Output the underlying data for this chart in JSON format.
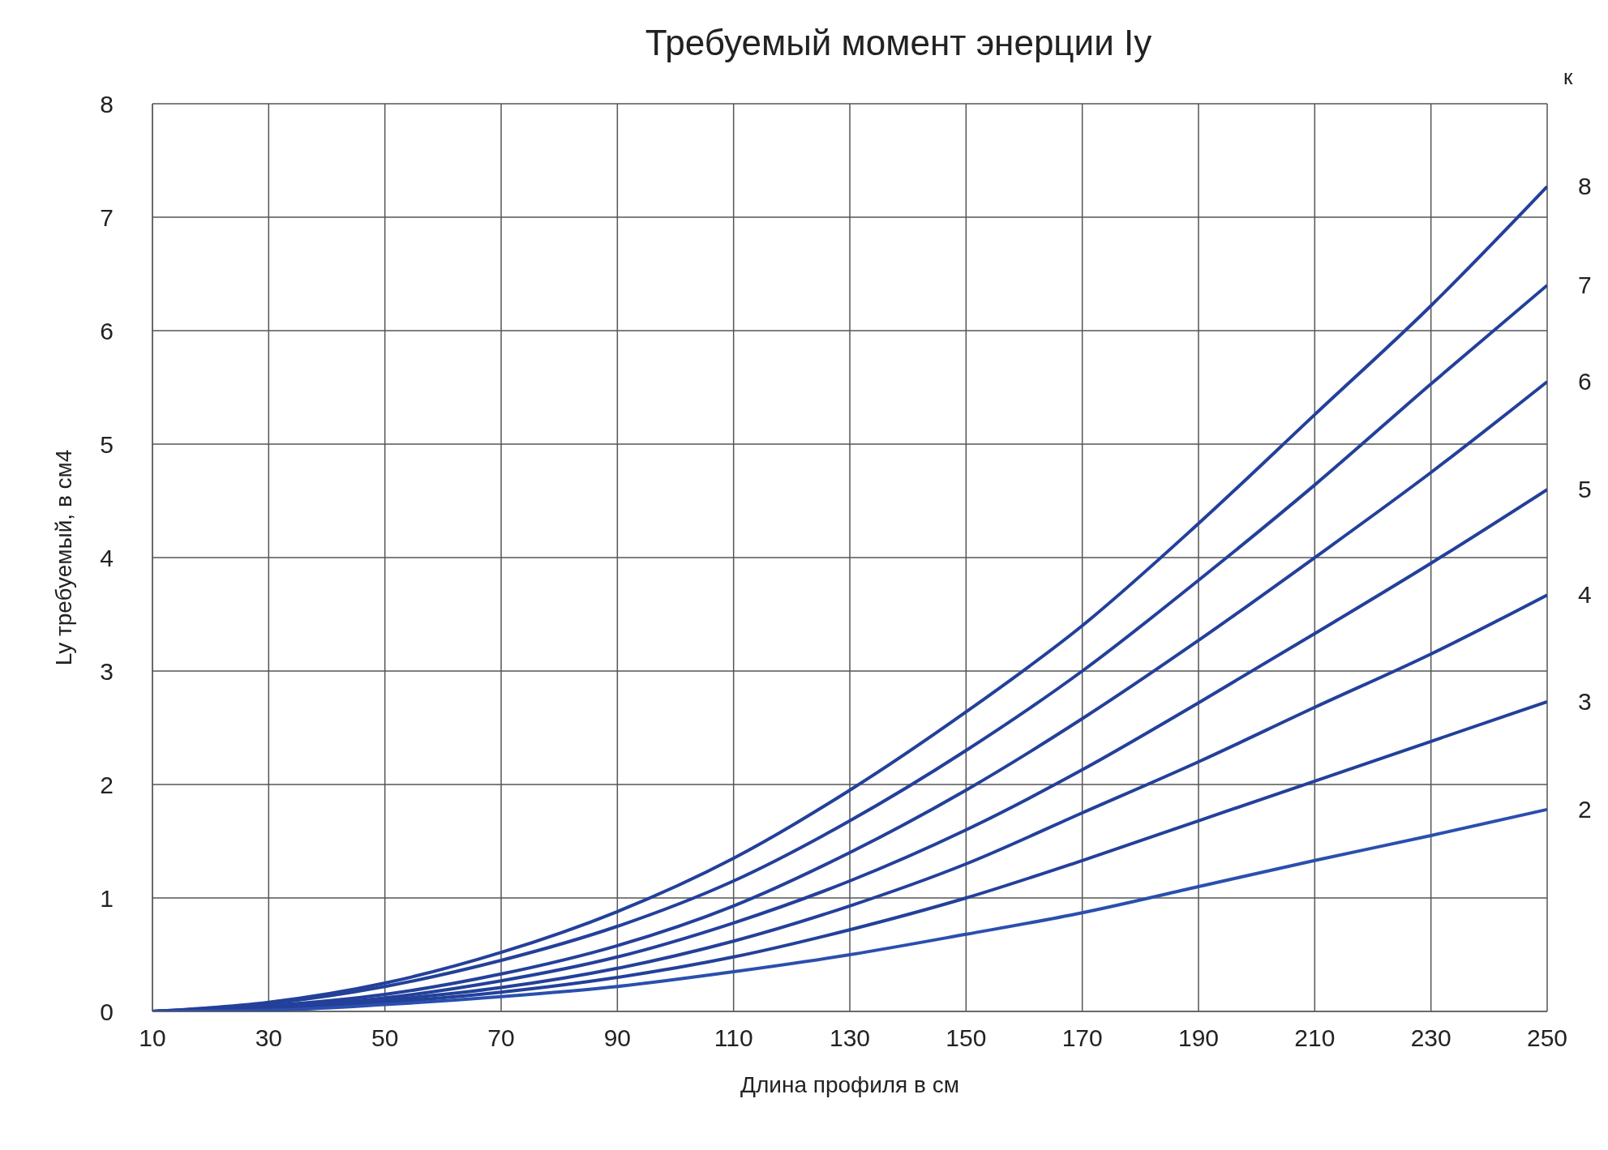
{
  "chart_data": {
    "type": "line",
    "title": "Требуемый момент энерции Iy",
    "xlabel": "Длина профиля в см",
    "ylabel": "Ly требуемый, в см4",
    "legend_title": "к",
    "x": [
      10,
      30,
      50,
      70,
      90,
      110,
      130,
      150,
      170,
      190,
      210,
      230,
      250
    ],
    "xlim": [
      10,
      250
    ],
    "xticks": [
      10,
      30,
      50,
      70,
      90,
      110,
      130,
      150,
      170,
      190,
      210,
      230,
      250
    ],
    "ylim": [
      0,
      8
    ],
    "yticks": [
      0,
      1,
      2,
      3,
      4,
      5,
      6,
      7,
      8
    ],
    "grid": true,
    "marker": "none",
    "line_style": "solid",
    "series": [
      {
        "name": "8",
        "color": "#23409a",
        "values": [
          0,
          0.08,
          0.25,
          0.52,
          0.88,
          1.35,
          1.95,
          2.64,
          3.4,
          4.3,
          5.26,
          6.22,
          7.27
        ]
      },
      {
        "name": "7",
        "color": "#23409a",
        "values": [
          0,
          0.07,
          0.22,
          0.45,
          0.75,
          1.15,
          1.68,
          2.3,
          3.0,
          3.8,
          4.64,
          5.53,
          6.4
        ]
      },
      {
        "name": "6",
        "color": "#23409a",
        "values": [
          0,
          0.05,
          0.15,
          0.33,
          0.58,
          0.93,
          1.4,
          1.95,
          2.58,
          3.27,
          4.0,
          4.75,
          5.55
        ]
      },
      {
        "name": "5",
        "color": "#23409a",
        "values": [
          0,
          0.04,
          0.12,
          0.27,
          0.48,
          0.78,
          1.15,
          1.6,
          2.13,
          2.72,
          3.33,
          3.95,
          4.6
        ]
      },
      {
        "name": "4",
        "color": "#23409a",
        "values": [
          0,
          0.03,
          0.1,
          0.21,
          0.38,
          0.62,
          0.93,
          1.3,
          1.75,
          2.2,
          2.68,
          3.15,
          3.67
        ]
      },
      {
        "name": "3",
        "color": "#23409a",
        "values": [
          0,
          0.02,
          0.08,
          0.17,
          0.3,
          0.48,
          0.72,
          1.0,
          1.33,
          1.68,
          2.03,
          2.38,
          2.73
        ]
      },
      {
        "name": "2",
        "color": "#2a4fae",
        "values": [
          0,
          0.01,
          0.06,
          0.13,
          0.22,
          0.35,
          0.5,
          0.68,
          0.87,
          1.1,
          1.33,
          1.55,
          1.78
        ]
      }
    ]
  }
}
